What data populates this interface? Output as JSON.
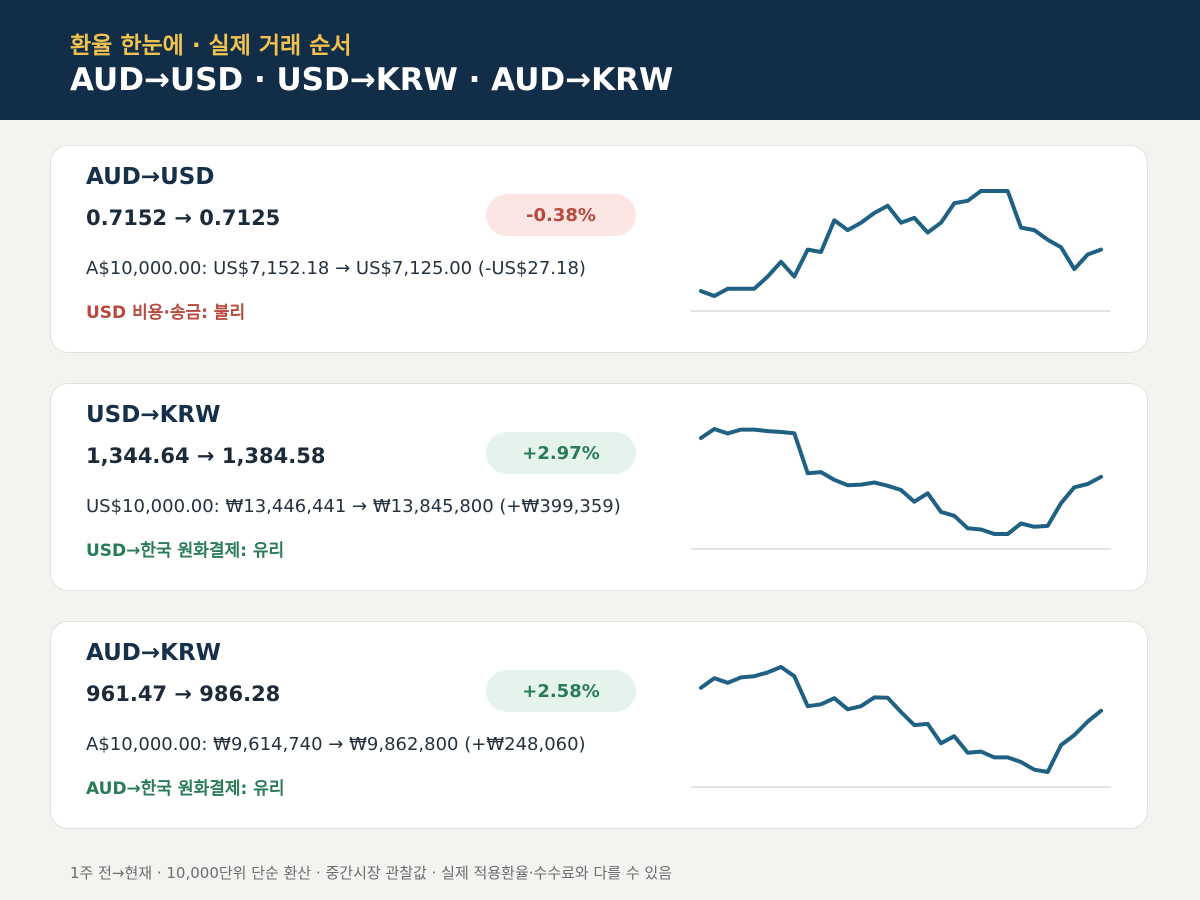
{
  "header": {
    "subtitle": "환율 한눈에 · 실제 거래 순서",
    "title": "AUD→USD · USD→KRW · AUD→KRW"
  },
  "colors": {
    "header_bg": "#122d48",
    "accent_yellow": "#f0c24f",
    "line": "#1f6183",
    "negative": "#b8493d",
    "positive": "#2a7c57"
  },
  "cards": [
    {
      "pair": "AUD→USD",
      "rates": "0.7152 → 0.7125",
      "change": "-0.38%",
      "direction": "negative",
      "conversion": "A$10,000.00: US$7,152.18 → US$7,125.00 (-US$27.18)",
      "verdict": "USD 비용·송금: 불리"
    },
    {
      "pair": "USD→KRW",
      "rates": "1,344.64 → 1,384.58",
      "change": "+2.97%",
      "direction": "positive",
      "conversion": "US$10,000.00: ₩13,446,441 → ₩13,845,800 (+₩399,359)",
      "verdict": "USD→한국 원화결제: 유리"
    },
    {
      "pair": "AUD→KRW",
      "rates": "961.47 → 986.28",
      "change": "+2.58%",
      "direction": "positive",
      "conversion": "A$10,000.00: ₩9,614,740 → ₩9,862,800 (+₩248,060)",
      "verdict": "AUD→한국 원화결제: 유리"
    }
  ],
  "chart_data": [
    {
      "type": "line",
      "series": [
        {
          "values": [
            0.7122,
            0.712,
            0.7123,
            0.7123,
            0.7123,
            0.7128,
            0.7134,
            0.7128,
            0.7139,
            0.7138,
            0.7151,
            0.7147,
            0.715,
            0.7154,
            0.7157,
            0.715,
            0.7152,
            0.7146,
            0.715,
            0.7158,
            0.7159,
            0.7163,
            0.7163,
            0.7163,
            0.7148,
            0.7147,
            0.7143,
            0.714,
            0.7131,
            0.7137,
            0.7139
          ]
        }
      ],
      "grid": false
    },
    {
      "type": "line",
      "series": [
        {
          "values": [
            1346.0,
            1349.0,
            1347.5,
            1348.8,
            1348.8,
            1348.3,
            1348.0,
            1347.6,
            1334.2,
            1334.6,
            1332.0,
            1330.2,
            1330.4,
            1331.1,
            1330.0,
            1328.6,
            1324.7,
            1327.5,
            1321.3,
            1320.0,
            1315.8,
            1315.4,
            1313.9,
            1313.9,
            1317.4,
            1316.3,
            1316.6,
            1324.2,
            1329.5,
            1330.6,
            1333.0
          ]
        }
      ],
      "grid": false
    },
    {
      "type": "line",
      "series": [
        {
          "values": [
            966.5,
            969.0,
            967.8,
            969.2,
            969.5,
            970.5,
            971.9,
            969.5,
            961.7,
            962.2,
            963.8,
            960.9,
            961.7,
            964.0,
            963.9,
            960.2,
            956.8,
            957.1,
            952.1,
            953.9,
            949.6,
            949.9,
            948.4,
            948.4,
            947.2,
            945.2,
            944.6,
            951.6,
            954.2,
            957.7,
            960.5
          ]
        }
      ],
      "grid": false
    }
  ],
  "footer": {
    "note": "1주 전→현재 · 10,000단위 단순 환산 · 중간시장 관찰값 · 실제 적용환율·수수료와 다를 수 있음"
  }
}
